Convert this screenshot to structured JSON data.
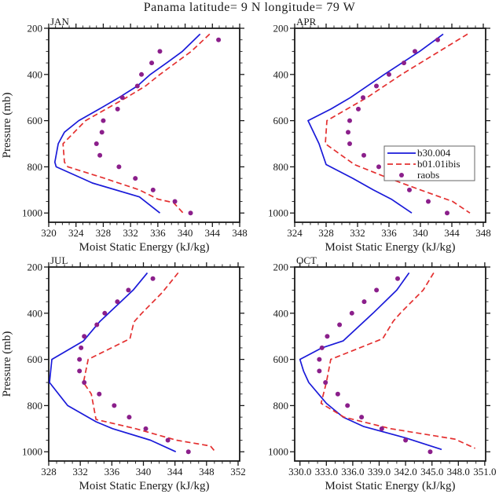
{
  "chart_data": {
    "type": "line",
    "title": "Panama  latitude= 9 N longitude= 79 W",
    "grid": false,
    "y_axis": {
      "title": "Pressure (mb)",
      "min": 200,
      "max": 1040,
      "inverted": true,
      "tick_values": [
        200,
        400,
        600,
        800,
        1000
      ],
      "tick_labels": [
        "200",
        "400",
        "600",
        "800",
        "1000"
      ],
      "minor_step": 50
    },
    "legend": {
      "shown_in_panel": "APR",
      "position": "inside lower-right of APR panel",
      "box": {
        "x": 172,
        "y": 166,
        "w": 115,
        "h": 44
      },
      "entries": [
        {
          "name": "b30.004",
          "style": "solid-line",
          "color": "#1a1ad9"
        },
        {
          "name": "b01.01ibis",
          "style": "dashed-line",
          "color": "#e43030"
        },
        {
          "name": "raobs",
          "style": "dots",
          "color": "#8b1f8b"
        }
      ]
    },
    "panels": [
      {
        "month": "JAN",
        "x_axis": {
          "title": "Moist Static Energy (kJ/kg)",
          "min": 320,
          "max": 348,
          "tick_values": [
            320,
            324,
            328,
            332,
            336,
            340,
            344,
            348
          ],
          "tick_labels": [
            "320",
            "324",
            "328",
            "332",
            "336",
            "340",
            "344",
            "348"
          ],
          "minor_step": 1
        },
        "series": {
          "b30.004": [
            [
              225,
              342.2
            ],
            [
              300,
              339.6
            ],
            [
              350,
              337.3
            ],
            [
              400,
              334.9
            ],
            [
              450,
              333.0
            ],
            [
              500,
              330.3
            ],
            [
              550,
              327.4
            ],
            [
              600,
              324.4
            ],
            [
              650,
              322.3
            ],
            [
              700,
              321.4
            ],
            [
              780,
              320.9
            ],
            [
              800,
              321.1
            ],
            [
              850,
              324.9
            ],
            [
              870,
              326.4
            ],
            [
              930,
              333.3
            ],
            [
              1000,
              336.3
            ]
          ],
          "b01.01ibis": [
            [
              225,
              343.6
            ],
            [
              300,
              340.9
            ],
            [
              400,
              336.3
            ],
            [
              450,
              334.2
            ],
            [
              500,
              331.4
            ],
            [
              600,
              325.4
            ],
            [
              700,
              322.1
            ],
            [
              780,
              322.3
            ],
            [
              800,
              322.8
            ],
            [
              850,
              328.2
            ],
            [
              900,
              333.3
            ],
            [
              940,
              336.0
            ],
            [
              955,
              338.3
            ],
            [
              1000,
              339.7
            ]
          ],
          "raobs": [
            [
              250,
              344.9
            ],
            [
              300,
              336.3
            ],
            [
              350,
              335.1
            ],
            [
              400,
              333.6
            ],
            [
              450,
              333.0
            ],
            [
              500,
              330.8
            ],
            [
              550,
              330.1
            ],
            [
              600,
              328.0
            ],
            [
              650,
              327.8
            ],
            [
              700,
              327.0
            ],
            [
              750,
              327.5
            ],
            [
              800,
              330.3
            ],
            [
              850,
              332.7
            ],
            [
              900,
              335.3
            ],
            [
              950,
              338.5
            ],
            [
              1000,
              340.8
            ]
          ]
        }
      },
      {
        "month": "APR",
        "x_axis": {
          "title": "Moist Static Energy (kJ/kg)",
          "min": 324,
          "max": 348.3,
          "tick_values": [
            324,
            328,
            332,
            336,
            340,
            344,
            348
          ],
          "tick_labels": [
            "324",
            "328",
            "332",
            "336",
            "340",
            "344",
            "348"
          ],
          "minor_step": 1
        },
        "series": {
          "b30.004": [
            [
              225,
              342.9
            ],
            [
              300,
              339.9
            ],
            [
              400,
              335.4
            ],
            [
              500,
              331.1
            ],
            [
              550,
              328.6
            ],
            [
              600,
              325.7
            ],
            [
              700,
              327.1
            ],
            [
              790,
              328.0
            ],
            [
              850,
              331.4
            ],
            [
              900,
              334.0
            ],
            [
              940,
              336.3
            ],
            [
              1000,
              338.9
            ]
          ],
          "b01.01ibis": [
            [
              225,
              346.0
            ],
            [
              300,
              342.4
            ],
            [
              400,
              337.6
            ],
            [
              500,
              333.2
            ],
            [
              600,
              328.1
            ],
            [
              700,
              327.9
            ],
            [
              790,
              331.6
            ],
            [
              850,
              336.0
            ],
            [
              900,
              340.0
            ],
            [
              950,
              344.1
            ],
            [
              1000,
              346.3
            ]
          ],
          "raobs": [
            [
              250,
              342.2
            ],
            [
              300,
              339.3
            ],
            [
              350,
              337.9
            ],
            [
              400,
              336.0
            ],
            [
              450,
              334.4
            ],
            [
              500,
              332.7
            ],
            [
              550,
              332.1
            ],
            [
              600,
              331.0
            ],
            [
              650,
              330.8
            ],
            [
              700,
              331.0
            ],
            [
              750,
              332.8
            ],
            [
              800,
              334.7
            ],
            [
              850,
              336.2
            ],
            [
              900,
              338.6
            ],
            [
              950,
              341.0
            ],
            [
              1000,
              343.4
            ]
          ]
        }
      },
      {
        "month": "JUL",
        "x_axis": {
          "title": "Moist Static Energy (kJ/kg)",
          "min": 328,
          "max": 352.2,
          "tick_values": [
            328,
            332,
            336,
            340,
            344,
            348,
            352
          ],
          "tick_labels": [
            "328",
            "332",
            "336",
            "340",
            "344",
            "348",
            "352"
          ],
          "minor_step": 1
        },
        "series": {
          "b30.004": [
            [
              225,
              340.5
            ],
            [
              300,
              338.7
            ],
            [
              400,
              335.6
            ],
            [
              435,
              334.5
            ],
            [
              520,
              332.4
            ],
            [
              600,
              328.4
            ],
            [
              700,
              328.1
            ],
            [
              800,
              330.4
            ],
            [
              870,
              334.0
            ],
            [
              900,
              336.1
            ],
            [
              950,
              340.9
            ],
            [
              1000,
              344.1
            ]
          ],
          "b01.01ibis": [
            [
              225,
              344.4
            ],
            [
              310,
              342.4
            ],
            [
              400,
              339.8
            ],
            [
              438,
              338.8
            ],
            [
              510,
              338.3
            ],
            [
              600,
              333.0
            ],
            [
              700,
              332.4
            ],
            [
              750,
              333.4
            ],
            [
              860,
              334.0
            ],
            [
              900,
              339.0
            ],
            [
              950,
              344.2
            ],
            [
              975,
              348.5
            ],
            [
              1000,
              349.1
            ]
          ],
          "raobs": [
            [
              250,
              341.2
            ],
            [
              300,
              338.1
            ],
            [
              350,
              336.7
            ],
            [
              400,
              335.1
            ],
            [
              450,
              334.1
            ],
            [
              500,
              332.5
            ],
            [
              550,
              332.1
            ],
            [
              600,
              331.9
            ],
            [
              650,
              331.9
            ],
            [
              700,
              332.5
            ],
            [
              750,
              334.4
            ],
            [
              800,
              336.3
            ],
            [
              850,
              338.2
            ],
            [
              900,
              340.3
            ],
            [
              950,
              343.1
            ],
            [
              1000,
              345.7
            ]
          ]
        }
      },
      {
        "month": "OCT",
        "x_axis": {
          "title": "Moist Static Energy (kJ/kg)",
          "min": 329.4,
          "max": 351.1,
          "tick_values": [
            330,
            333,
            336,
            339,
            342,
            345,
            348,
            351
          ],
          "tick_labels": [
            "330.0",
            "333.0",
            "336.0",
            "339.0",
            "342.0",
            "345.0",
            "348.0",
            "351.0"
          ],
          "minor_step": 1
        },
        "series": {
          "b30.004": [
            [
              225,
              342.4
            ],
            [
              300,
              341.0
            ],
            [
              400,
              338.3
            ],
            [
              520,
              334.9
            ],
            [
              550,
              332.5
            ],
            [
              600,
              330.0
            ],
            [
              650,
              330.4
            ],
            [
              700,
              331.0
            ],
            [
              790,
              333.0
            ],
            [
              850,
              334.9
            ],
            [
              890,
              337.2
            ],
            [
              940,
              342.0
            ],
            [
              990,
              346.1
            ]
          ],
          "b01.01ibis": [
            [
              225,
              345.2
            ],
            [
              300,
              344.0
            ],
            [
              400,
              341.4
            ],
            [
              435,
              340.6
            ],
            [
              510,
              339.4
            ],
            [
              600,
              333.5
            ],
            [
              700,
              333.0
            ],
            [
              790,
              332.4
            ],
            [
              850,
              335.0
            ],
            [
              900,
              340.3
            ],
            [
              945,
              347.6
            ],
            [
              985,
              349.9
            ]
          ],
          "raobs": [
            [
              250,
              341.1
            ],
            [
              300,
              338.7
            ],
            [
              350,
              337.3
            ],
            [
              400,
              335.9
            ],
            [
              450,
              334.5
            ],
            [
              500,
              333.1
            ],
            [
              550,
              332.5
            ],
            [
              600,
              332.2
            ],
            [
              650,
              332.2
            ],
            [
              700,
              332.9
            ],
            [
              750,
              334.3
            ],
            [
              800,
              335.4
            ],
            [
              850,
              337.0
            ],
            [
              900,
              339.3
            ],
            [
              950,
              342.0
            ],
            [
              1000,
              344.8
            ]
          ]
        }
      }
    ]
  }
}
